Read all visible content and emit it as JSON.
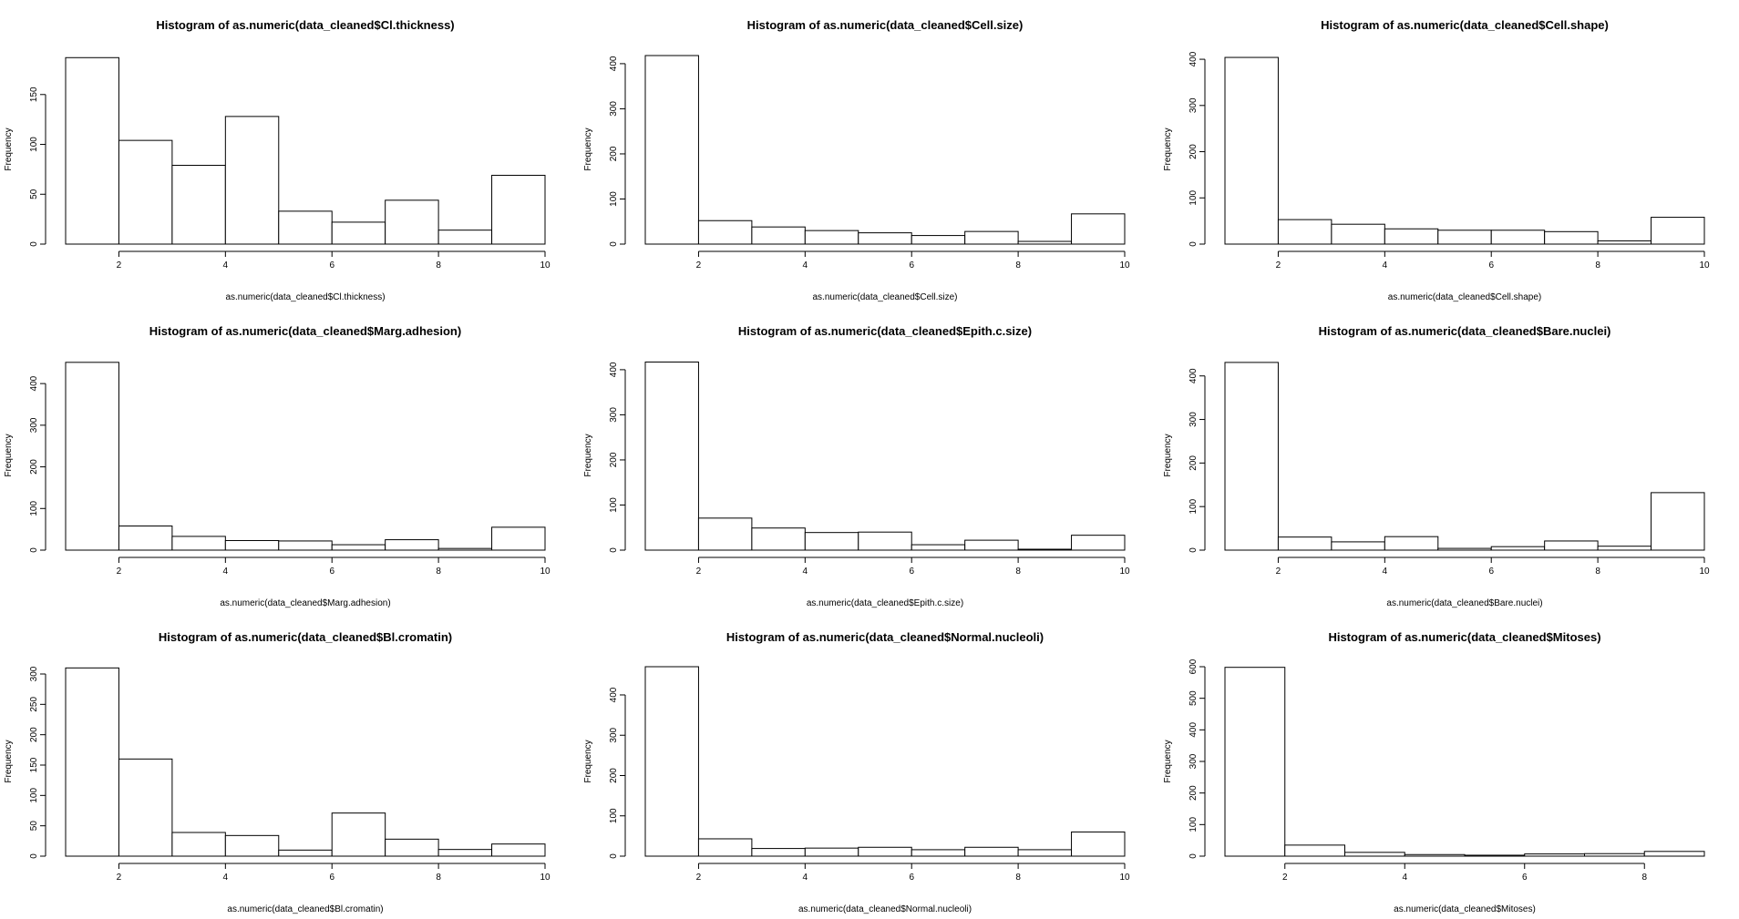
{
  "chart_data": [
    {
      "type": "bar",
      "title": "Histogram of as.numeric(data_cleaned$Cl.thickness)",
      "xlabel": "as.numeric(data_cleaned$Cl.thickness)",
      "ylabel": "Frequency",
      "bins": [
        [
          1,
          2
        ],
        [
          2,
          3
        ],
        [
          3,
          4
        ],
        [
          4,
          5
        ],
        [
          5,
          6
        ],
        [
          6,
          7
        ],
        [
          7,
          8
        ],
        [
          8,
          9
        ],
        [
          9,
          10
        ]
      ],
      "values": [
        187,
        104,
        79,
        128,
        33,
        22,
        44,
        14,
        69
      ],
      "xlim": [
        1,
        10
      ],
      "ylim": [
        0,
        190
      ],
      "xticks": [
        2,
        4,
        6,
        8,
        10
      ],
      "yticks": [
        0,
        50,
        100,
        150
      ]
    },
    {
      "type": "bar",
      "title": "Histogram of as.numeric(data_cleaned$Cell.size)",
      "xlabel": "as.numeric(data_cleaned$Cell.size)",
      "ylabel": "Frequency",
      "bins": [
        [
          1,
          2
        ],
        [
          2,
          3
        ],
        [
          3,
          4
        ],
        [
          4,
          5
        ],
        [
          5,
          6
        ],
        [
          6,
          7
        ],
        [
          7,
          8
        ],
        [
          8,
          9
        ],
        [
          9,
          10
        ]
      ],
      "values": [
        418,
        52,
        38,
        30,
        25,
        19,
        28,
        6,
        67
      ],
      "xlim": [
        1,
        10
      ],
      "ylim": [
        0,
        420
      ],
      "xticks": [
        2,
        4,
        6,
        8,
        10
      ],
      "yticks": [
        0,
        100,
        200,
        300,
        400
      ]
    },
    {
      "type": "bar",
      "title": "Histogram of as.numeric(data_cleaned$Cell.shape)",
      "xlabel": "as.numeric(data_cleaned$Cell.shape)",
      "ylabel": "Frequency",
      "bins": [
        [
          1,
          2
        ],
        [
          2,
          3
        ],
        [
          3,
          4
        ],
        [
          4,
          5
        ],
        [
          5,
          6
        ],
        [
          6,
          7
        ],
        [
          7,
          8
        ],
        [
          8,
          9
        ],
        [
          9,
          10
        ]
      ],
      "values": [
        404,
        53,
        43,
        33,
        30,
        30,
        27,
        7,
        58
      ],
      "xlim": [
        1,
        10
      ],
      "ylim": [
        0,
        410
      ],
      "xticks": [
        2,
        4,
        6,
        8,
        10
      ],
      "yticks": [
        0,
        100,
        200,
        300,
        400
      ]
    },
    {
      "type": "bar",
      "title": "Histogram of as.numeric(data_cleaned$Marg.adhesion)",
      "xlabel": "as.numeric(data_cleaned$Marg.adhesion)",
      "ylabel": "Frequency",
      "bins": [
        [
          1,
          2
        ],
        [
          2,
          3
        ],
        [
          3,
          4
        ],
        [
          4,
          5
        ],
        [
          5,
          6
        ],
        [
          6,
          7
        ],
        [
          7,
          8
        ],
        [
          8,
          9
        ],
        [
          9,
          10
        ]
      ],
      "values": [
        451,
        58,
        33,
        23,
        22,
        13,
        25,
        4,
        55
      ],
      "xlim": [
        1,
        10
      ],
      "ylim": [
        0,
        455
      ],
      "xticks": [
        2,
        4,
        6,
        8,
        10
      ],
      "yticks": [
        0,
        100,
        200,
        300,
        400
      ]
    },
    {
      "type": "bar",
      "title": "Histogram of as.numeric(data_cleaned$Epith.c.size)",
      "xlabel": "as.numeric(data_cleaned$Epith.c.size)",
      "ylabel": "Frequency",
      "bins": [
        [
          1,
          2
        ],
        [
          2,
          3
        ],
        [
          3,
          4
        ],
        [
          4,
          5
        ],
        [
          5,
          6
        ],
        [
          6,
          7
        ],
        [
          7,
          8
        ],
        [
          8,
          9
        ],
        [
          9,
          10
        ]
      ],
      "values": [
        417,
        71,
        49,
        39,
        40,
        12,
        22,
        2,
        33
      ],
      "xlim": [
        1,
        10
      ],
      "ylim": [
        0,
        420
      ],
      "xticks": [
        2,
        4,
        6,
        8,
        10
      ],
      "yticks": [
        0,
        100,
        200,
        300,
        400
      ]
    },
    {
      "type": "bar",
      "title": "Histogram of as.numeric(data_cleaned$Bare.nuclei)",
      "xlabel": "as.numeric(data_cleaned$Bare.nuclei)",
      "ylabel": "Frequency",
      "bins": [
        [
          1,
          2
        ],
        [
          2,
          3
        ],
        [
          3,
          4
        ],
        [
          4,
          5
        ],
        [
          5,
          6
        ],
        [
          6,
          7
        ],
        [
          7,
          8
        ],
        [
          8,
          9
        ],
        [
          9,
          10
        ]
      ],
      "values": [
        431,
        30,
        19,
        31,
        4,
        8,
        21,
        9,
        132
      ],
      "xlim": [
        1,
        10
      ],
      "ylim": [
        0,
        435
      ],
      "xticks": [
        2,
        4,
        6,
        8,
        10
      ],
      "yticks": [
        0,
        100,
        200,
        300,
        400
      ]
    },
    {
      "type": "bar",
      "title": "Histogram of as.numeric(data_cleaned$Bl.cromatin)",
      "xlabel": "as.numeric(data_cleaned$Bl.cromatin)",
      "ylabel": "Frequency",
      "bins": [
        [
          1,
          2
        ],
        [
          2,
          3
        ],
        [
          3,
          4
        ],
        [
          4,
          5
        ],
        [
          5,
          6
        ],
        [
          6,
          7
        ],
        [
          7,
          8
        ],
        [
          8,
          9
        ],
        [
          9,
          10
        ]
      ],
      "values": [
        310,
        160,
        39,
        34,
        10,
        71,
        28,
        11,
        20
      ],
      "xlim": [
        1,
        10
      ],
      "ylim": [
        0,
        312
      ],
      "xticks": [
        2,
        4,
        6,
        8,
        10
      ],
      "yticks": [
        0,
        50,
        100,
        150,
        200,
        250,
        300
      ]
    },
    {
      "type": "bar",
      "title": "Histogram of as.numeric(data_cleaned$Normal.nucleoli)",
      "xlabel": "as.numeric(data_cleaned$Normal.nucleoli)",
      "ylabel": "Frequency",
      "bins": [
        [
          1,
          2
        ],
        [
          2,
          3
        ],
        [
          3,
          4
        ],
        [
          4,
          5
        ],
        [
          5,
          6
        ],
        [
          6,
          7
        ],
        [
          7,
          8
        ],
        [
          8,
          9
        ],
        [
          9,
          10
        ]
      ],
      "values": [
        470,
        43,
        19,
        20,
        22,
        16,
        22,
        16,
        60
      ],
      "xlim": [
        1,
        10
      ],
      "ylim": [
        0,
        470
      ],
      "xticks": [
        2,
        4,
        6,
        8,
        10
      ],
      "yticks": [
        0,
        100,
        200,
        300,
        400
      ]
    },
    {
      "type": "bar",
      "title": "Histogram of as.numeric(data_cleaned$Mitoses)",
      "xlabel": "as.numeric(data_cleaned$Mitoses)",
      "ylabel": "Frequency",
      "bins": [
        [
          1,
          2
        ],
        [
          2,
          3
        ],
        [
          3,
          4
        ],
        [
          4,
          5
        ],
        [
          5,
          6
        ],
        [
          6,
          7
        ],
        [
          7,
          8
        ],
        [
          8,
          9
        ]
      ],
      "values": [
        598,
        35,
        12,
        5,
        3,
        7,
        8,
        15
      ],
      "xlim": [
        1,
        9
      ],
      "ylim": [
        0,
        600
      ],
      "xticks": [
        2,
        4,
        6,
        8
      ],
      "yticks": [
        0,
        100,
        200,
        300,
        400,
        500,
        600
      ]
    }
  ]
}
